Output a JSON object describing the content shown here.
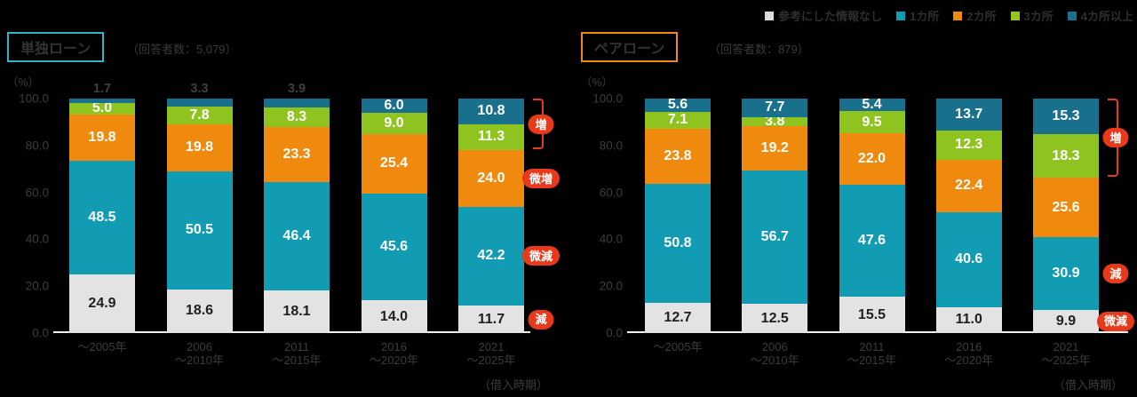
{
  "page": {
    "background": "#000000"
  },
  "legend": {
    "items": [
      {
        "label": "参考にした情報なし",
        "color": "#dcdcdc"
      },
      {
        "label": "1カ所",
        "color": "#129cb4"
      },
      {
        "label": "2カ所",
        "color": "#f08a0e"
      },
      {
        "label": "3カ所",
        "color": "#93c51d"
      },
      {
        "label": "4カ所以上",
        "color": "#19708c"
      }
    ]
  },
  "colors": {
    "series": [
      "#e3e3e3",
      "#129cb4",
      "#f08a0e",
      "#8fc31f",
      "#19708c"
    ],
    "badge": "#e8391a",
    "axis_line": "#efefef",
    "tick_text": "#3c3c3c",
    "legend_text": "#2e2e2e",
    "title_text": "#333333",
    "outside_value_text": "#3f3f3f",
    "value_on_gray": "#1f1f1f",
    "value_on_color": "#ffffff",
    "title_border_single": "#35b4c8",
    "title_border_pair": "#f0891c"
  },
  "chart_data": [
    {
      "type": "stacked-bar",
      "title": "単独ローン",
      "respondents_note": "（回答者数：5,079）",
      "unit": "（%）",
      "xlabel": "（借入時期）",
      "ylim": [
        0,
        100
      ],
      "grid": false,
      "legend_position": "top-right",
      "y_tick_labels": [
        "100.0",
        "80.0",
        "60.0",
        "40.0",
        "20.0",
        "0.0"
      ],
      "categories": [
        "～2005年",
        "2006～2010年",
        "2011～2015年",
        "2016～2020年",
        "2021～2025年"
      ],
      "category_lines": [
        [
          "～2005年"
        ],
        [
          "2006",
          "～2010年"
        ],
        [
          "2011",
          "～2015年"
        ],
        [
          "2016",
          "～2020年"
        ],
        [
          "2021",
          "～2025年"
        ]
      ],
      "series": [
        {
          "name": "参考にした情報なし",
          "values": [
            24.9,
            18.6,
            18.1,
            14.0,
            11.7
          ]
        },
        {
          "name": "1カ所",
          "values": [
            48.5,
            50.5,
            46.4,
            45.6,
            42.2
          ]
        },
        {
          "name": "2カ所",
          "values": [
            19.8,
            19.8,
            23.3,
            25.4,
            24.0
          ]
        },
        {
          "name": "3カ所",
          "values": [
            5.0,
            7.8,
            8.3,
            9.0,
            11.3
          ]
        },
        {
          "name": "4カ所以上",
          "values": [
            1.7,
            3.3,
            3.9,
            6.0,
            10.8
          ]
        }
      ],
      "top_label_outside": [
        true,
        true,
        true,
        false,
        false
      ],
      "annotations": [
        {
          "label": "増",
          "segments": [
            3,
            4
          ],
          "bracket": true
        },
        {
          "label": "微増",
          "segments": [
            2
          ]
        },
        {
          "label": "微減",
          "segments": [
            1
          ]
        },
        {
          "label": "減",
          "segments": [
            0
          ]
        }
      ]
    },
    {
      "type": "stacked-bar",
      "title": "ペアローン",
      "respondents_note": "（回答者数：879）",
      "unit": "（%）",
      "xlabel": "（借入時期）",
      "ylim": [
        0,
        100
      ],
      "grid": false,
      "legend_position": "top-right",
      "y_tick_labels": [
        "100.0",
        "80.0",
        "60.0",
        "40.0",
        "20.0",
        "0.0"
      ],
      "categories": [
        "～2005年",
        "2006～2010年",
        "2011～2015年",
        "2016～2020年",
        "2021～2025年"
      ],
      "category_lines": [
        [
          "～2005年"
        ],
        [
          "2006",
          "～2010年"
        ],
        [
          "2011",
          "～2015年"
        ],
        [
          "2016",
          "～2020年"
        ],
        [
          "2021",
          "～2025年"
        ]
      ],
      "series": [
        {
          "name": "参考にした情報なし",
          "values": [
            12.7,
            12.5,
            15.5,
            11.0,
            9.9
          ]
        },
        {
          "name": "1カ所",
          "values": [
            50.8,
            56.7,
            47.6,
            40.6,
            30.9
          ]
        },
        {
          "name": "2カ所",
          "values": [
            23.8,
            19.2,
            22.0,
            22.4,
            25.6
          ]
        },
        {
          "name": "3カ所",
          "values": [
            7.1,
            3.8,
            9.5,
            12.3,
            18.3
          ]
        },
        {
          "name": "4カ所以上",
          "values": [
            5.6,
            7.7,
            5.4,
            13.7,
            15.3
          ]
        }
      ],
      "top_label_outside": [
        false,
        false,
        false,
        false,
        false
      ],
      "annotations": [
        {
          "label": "増",
          "segments": [
            3,
            4
          ],
          "bracket": true
        },
        {
          "label": "減",
          "segments": [
            1
          ]
        },
        {
          "label": "微減",
          "segments": [
            0
          ]
        }
      ]
    }
  ]
}
